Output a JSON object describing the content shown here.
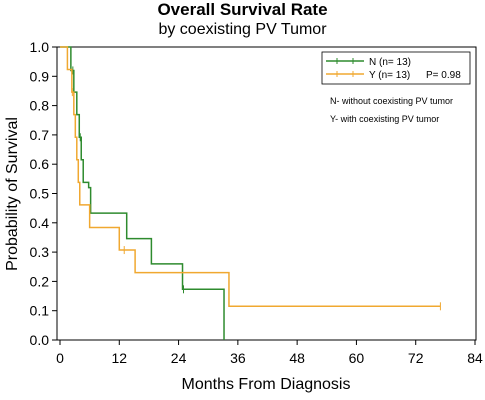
{
  "chart_data": {
    "type": "line",
    "title": "Overall Survival Rate",
    "subtitle": "by coexisting PV Tumor",
    "xlabel": "Months From Diagnosis",
    "ylabel": "Probability  of  Survival",
    "xlim": [
      0,
      84
    ],
    "ylim": [
      0,
      1.0
    ],
    "x_ticks": [
      "0",
      "12",
      "24",
      "36",
      "48",
      "60",
      "72",
      "84"
    ],
    "y_ticks": [
      "0.0",
      "0.1",
      "0.2",
      "0.3",
      "0.4",
      "0.5",
      "0.6",
      "0.7",
      "0.8",
      "0.9",
      "1.0"
    ],
    "grid": false,
    "legend_position": "top-right",
    "series": [
      {
        "name": "N",
        "legend_label": "N  (n= 13)",
        "color": "#2e8b2e",
        "steps": [
          [
            0,
            1.0
          ],
          [
            2.2,
            1.0
          ],
          [
            2.2,
            0.92
          ],
          [
            2.8,
            0.92
          ],
          [
            2.8,
            0.846
          ],
          [
            3.4,
            0.846
          ],
          [
            3.4,
            0.769
          ],
          [
            3.9,
            0.769
          ],
          [
            3.9,
            0.692
          ],
          [
            4.3,
            0.692
          ],
          [
            4.3,
            0.615
          ],
          [
            4.7,
            0.615
          ],
          [
            4.7,
            0.538
          ],
          [
            5.8,
            0.538
          ],
          [
            5.8,
            0.52
          ],
          [
            6.2,
            0.52
          ],
          [
            6.2,
            0.433
          ],
          [
            13.5,
            0.433
          ],
          [
            13.5,
            0.346
          ],
          [
            18.5,
            0.346
          ],
          [
            18.5,
            0.26
          ],
          [
            24.8,
            0.26
          ],
          [
            24.8,
            0.173
          ],
          [
            33.2,
            0.173
          ],
          [
            33.2,
            0.0
          ]
        ],
        "censor_x": [
          2.6,
          4.1,
          25.0
        ]
      },
      {
        "name": "Y",
        "legend_label": "Y    (n= 13)",
        "color": "#f0a830",
        "steps": [
          [
            0,
            1.0
          ],
          [
            1.5,
            1.0
          ],
          [
            1.5,
            0.923
          ],
          [
            2.4,
            0.923
          ],
          [
            2.4,
            0.846
          ],
          [
            2.8,
            0.846
          ],
          [
            2.8,
            0.769
          ],
          [
            3.1,
            0.769
          ],
          [
            3.1,
            0.692
          ],
          [
            3.4,
            0.692
          ],
          [
            3.4,
            0.615
          ],
          [
            3.7,
            0.615
          ],
          [
            3.7,
            0.538
          ],
          [
            4.0,
            0.538
          ],
          [
            4.0,
            0.461
          ],
          [
            6.0,
            0.461
          ],
          [
            6.0,
            0.384
          ],
          [
            12.0,
            0.384
          ],
          [
            12.0,
            0.307
          ],
          [
            15.2,
            0.307
          ],
          [
            15.2,
            0.23
          ],
          [
            34.2,
            0.23
          ],
          [
            34.2,
            0.115
          ],
          [
            77.0,
            0.115
          ]
        ],
        "censor_x": [
          2.5,
          13.0,
          77.0
        ]
      }
    ],
    "p_value": "P= 0.98",
    "notes": [
      "N- without coexisting PV tumor",
      "Y- with coexisting PV tumor"
    ]
  }
}
